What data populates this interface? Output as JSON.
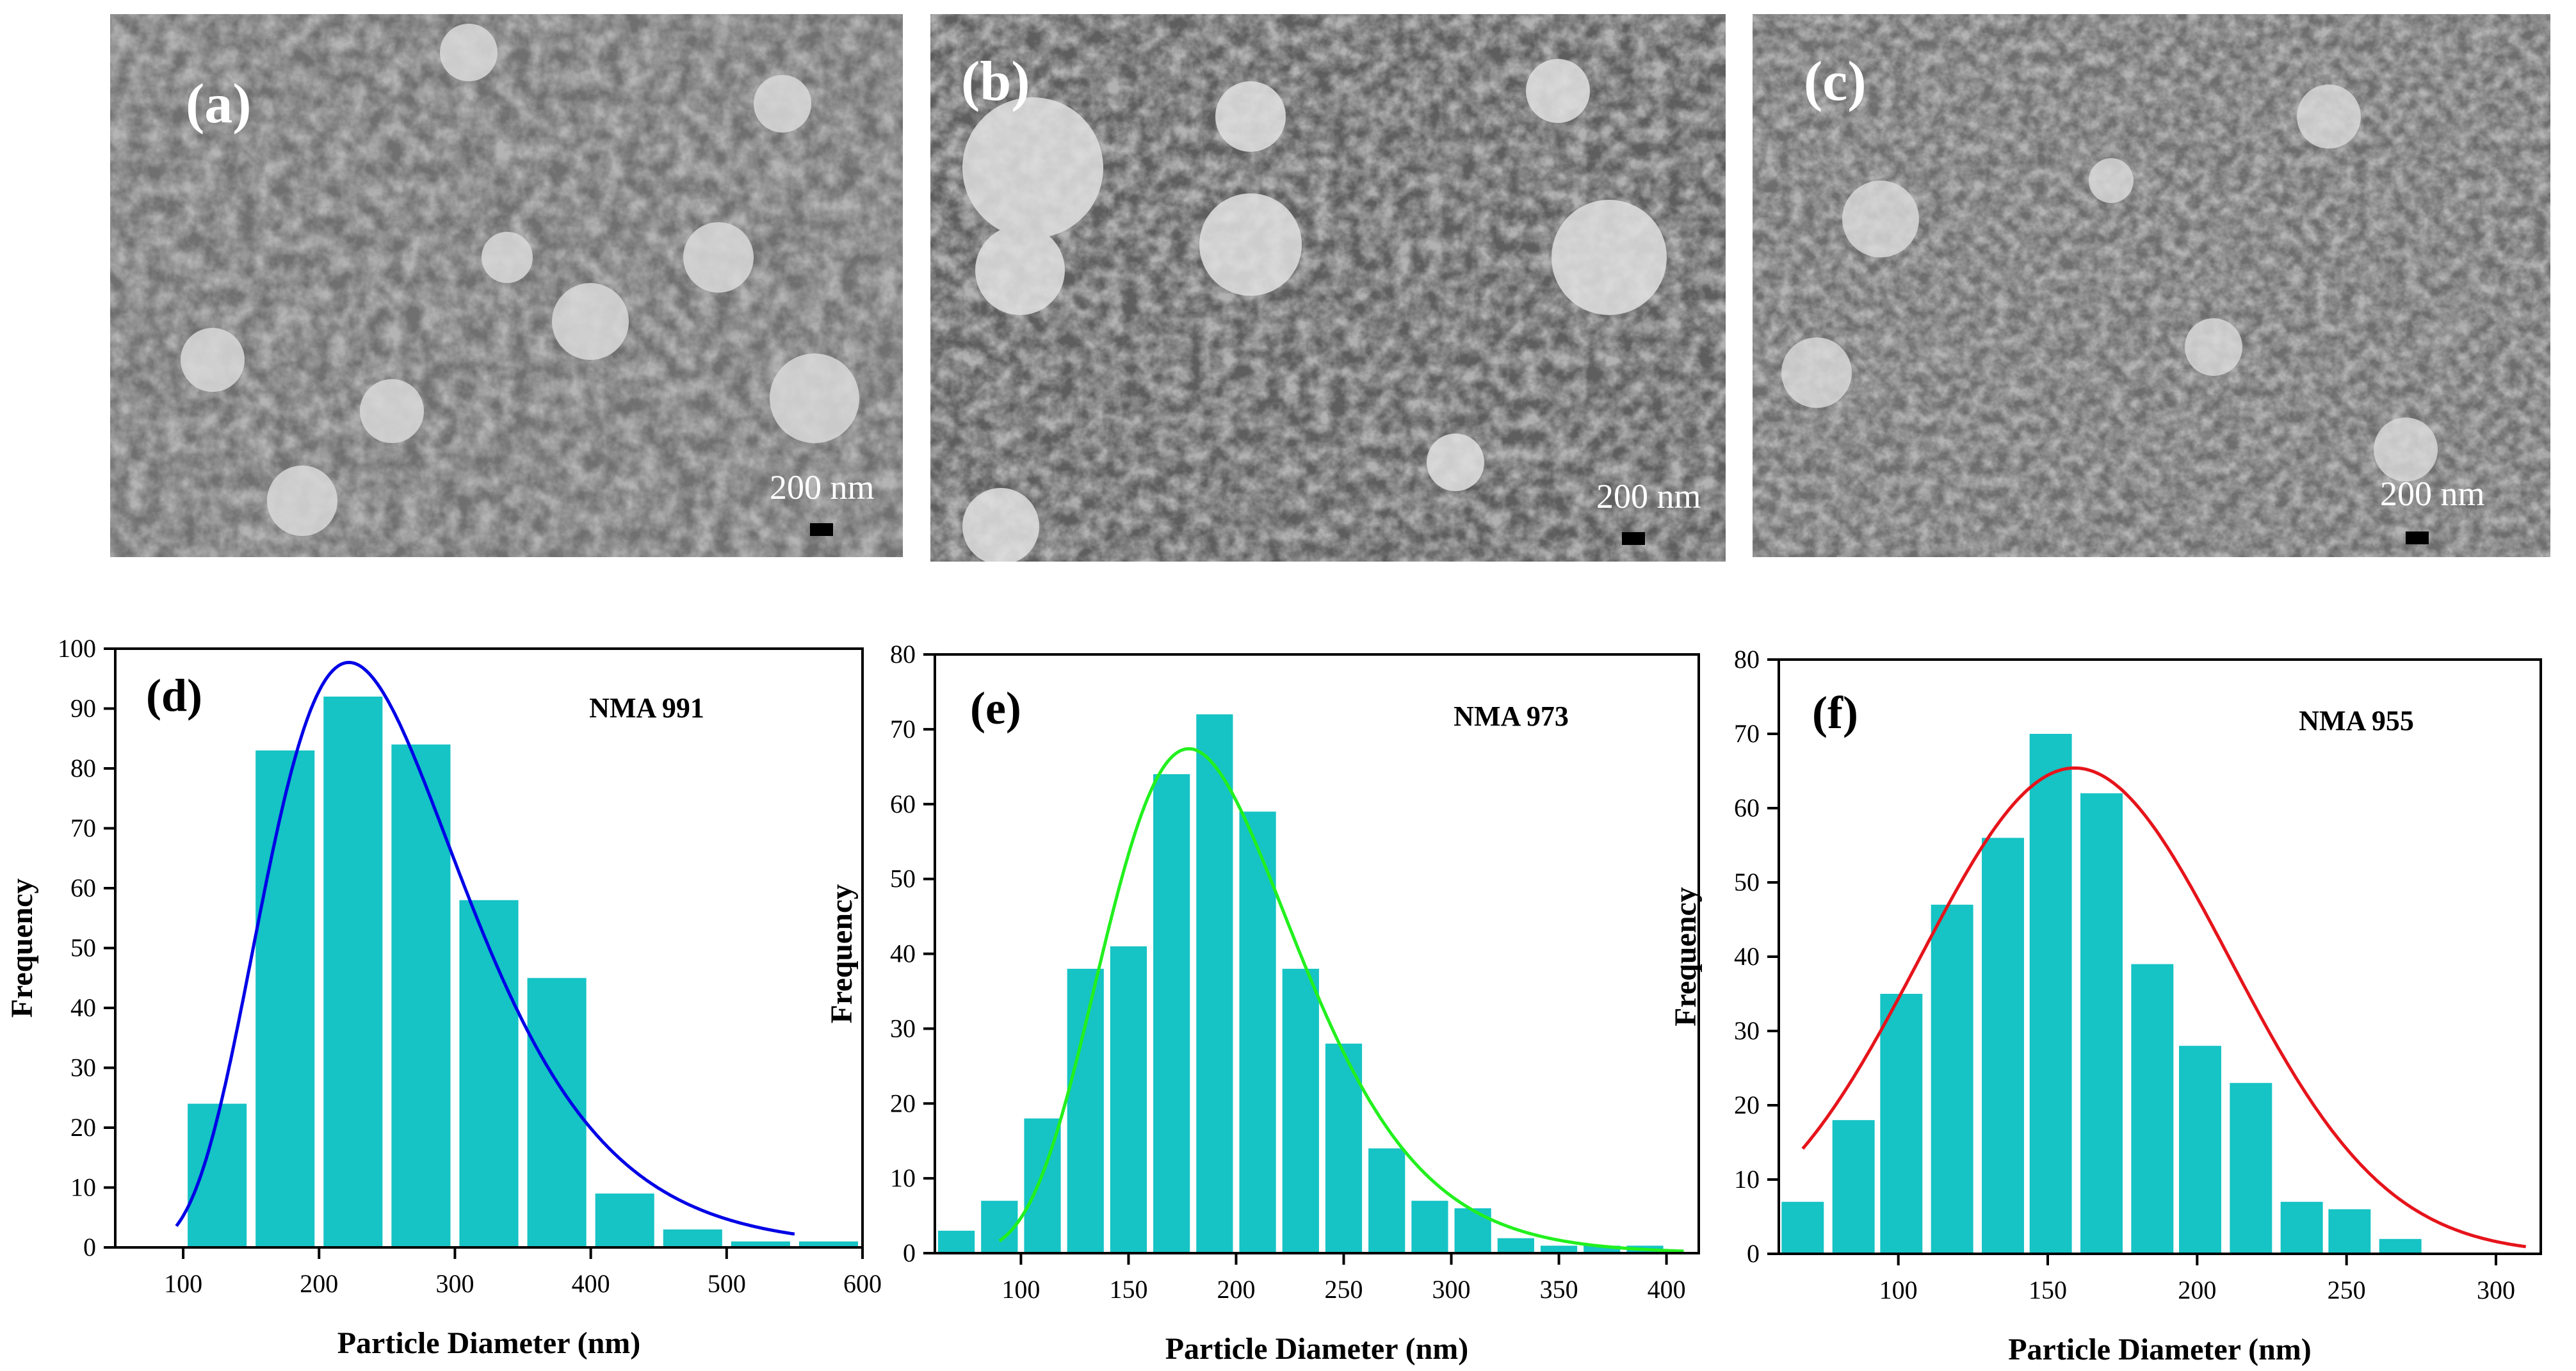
{
  "sem_panels": [
    {
      "id": "a",
      "label": "(a)",
      "scale_text": "200 nm"
    },
    {
      "id": "b",
      "label": "(b)",
      "scale_text": "200 nm"
    },
    {
      "id": "c",
      "label": "(c)",
      "scale_text": "200 nm"
    }
  ],
  "colors": {
    "bar": "#16C3C5",
    "fit_d": "#0000E6",
    "fit_e": "#22F01E",
    "fit_f": "#E6141B",
    "sem_bg": "#6b6b6b"
  },
  "chart_data": [
    {
      "type": "bar",
      "panel_label": "(d)",
      "title": "NMA 991",
      "xlabel": "Particle Diameter (nm)",
      "ylabel": "Frequency",
      "xlim": [
        50,
        600
      ],
      "ylim": [
        0,
        100
      ],
      "xticks": [
        100,
        200,
        300,
        400,
        500,
        600
      ],
      "yticks": [
        0,
        10,
        20,
        30,
        40,
        50,
        60,
        70,
        80,
        90,
        100
      ],
      "bin_width": 50,
      "bins": [
        {
          "x": 125,
          "value": 24
        },
        {
          "x": 175,
          "value": 83
        },
        {
          "x": 225,
          "value": 92
        },
        {
          "x": 275,
          "value": 84
        },
        {
          "x": 325,
          "value": 58
        },
        {
          "x": 375,
          "value": 45
        },
        {
          "x": 425,
          "value": 9
        },
        {
          "x": 475,
          "value": 3
        },
        {
          "x": 525,
          "value": 1
        },
        {
          "x": 575,
          "value": 1
        }
      ],
      "fit": {
        "type": "lognormal",
        "peak_x": 222,
        "peak_y": 97.7,
        "x_start": 90,
        "x_end": 550
      }
    },
    {
      "type": "bar",
      "panel_label": "(e)",
      "title": "NMA 973",
      "xlabel": "Particle Diameter (nm)",
      "ylabel": "Frequency",
      "xlim": [
        60,
        415
      ],
      "ylim": [
        0,
        80
      ],
      "xticks": [
        100,
        150,
        200,
        250,
        300,
        350,
        400
      ],
      "yticks": [
        0,
        10,
        20,
        30,
        40,
        50,
        60,
        70,
        80
      ],
      "bin_width": 20,
      "bins": [
        {
          "x": 70,
          "value": 3
        },
        {
          "x": 90,
          "value": 7
        },
        {
          "x": 110,
          "value": 18
        },
        {
          "x": 130,
          "value": 38
        },
        {
          "x": 150,
          "value": 41
        },
        {
          "x": 170,
          "value": 64
        },
        {
          "x": 190,
          "value": 72
        },
        {
          "x": 210,
          "value": 59
        },
        {
          "x": 230,
          "value": 38
        },
        {
          "x": 250,
          "value": 28
        },
        {
          "x": 270,
          "value": 14
        },
        {
          "x": 290,
          "value": 7
        },
        {
          "x": 310,
          "value": 6
        },
        {
          "x": 330,
          "value": 2
        },
        {
          "x": 350,
          "value": 1
        },
        {
          "x": 370,
          "value": 1
        },
        {
          "x": 390,
          "value": 1
        }
      ],
      "fit": {
        "type": "lognormal",
        "peak_x": 178,
        "peak_y": 67.4,
        "x_start": 90,
        "x_end": 408
      }
    },
    {
      "type": "bar",
      "panel_label": "(f)",
      "title": "NMA 955",
      "xlabel": "Particle Diameter (nm)",
      "ylabel": "Frequency",
      "xlim": [
        60,
        315
      ],
      "ylim": [
        0,
        80
      ],
      "xticks": [
        100,
        150,
        200,
        250,
        300
      ],
      "yticks": [
        0,
        10,
        20,
        30,
        40,
        50,
        60,
        70,
        80
      ],
      "bin_width": 16.7,
      "bins": [
        {
          "x": 68,
          "value": 7
        },
        {
          "x": 85,
          "value": 18
        },
        {
          "x": 101,
          "value": 35
        },
        {
          "x": 118,
          "value": 47
        },
        {
          "x": 135,
          "value": 56
        },
        {
          "x": 151,
          "value": 70
        },
        {
          "x": 168,
          "value": 62
        },
        {
          "x": 185,
          "value": 39
        },
        {
          "x": 201,
          "value": 28
        },
        {
          "x": 218,
          "value": 23
        },
        {
          "x": 235,
          "value": 7
        },
        {
          "x": 251,
          "value": 6
        },
        {
          "x": 268,
          "value": 2
        }
      ],
      "fit": {
        "type": "gaussian",
        "peak_x": 159,
        "peak_y": 65.4,
        "x_start": 68,
        "x_end": 310
      }
    }
  ]
}
